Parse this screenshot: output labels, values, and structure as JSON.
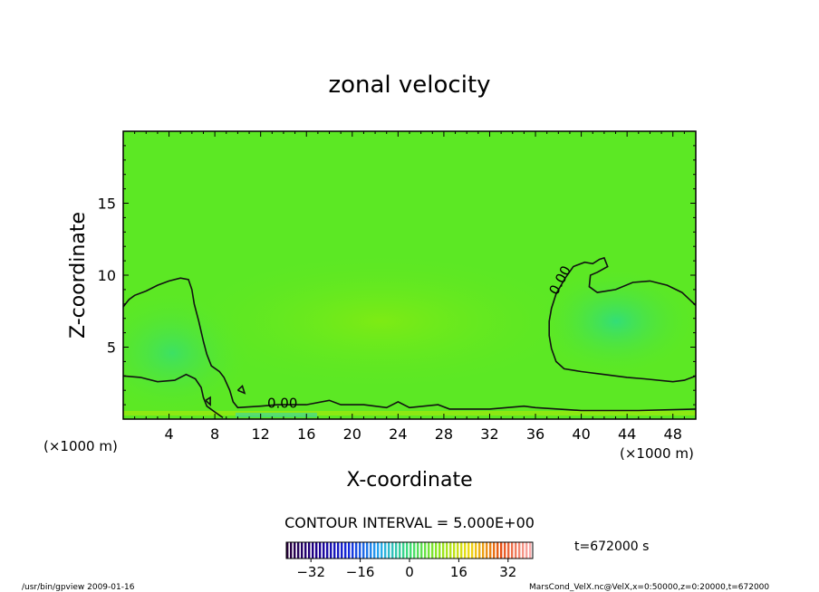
{
  "chart_data": {
    "type": "heatmap",
    "title": "zonal velocity",
    "xlabel": "X-coordinate",
    "ylabel": "Z-coordinate",
    "x_unit_note": "(×1000 m)",
    "z_unit_note": "(×1000 m)",
    "xlim": [
      0,
      50
    ],
    "ylim": [
      0,
      20
    ],
    "x_ticks": [
      4,
      8,
      12,
      16,
      20,
      24,
      28,
      32,
      36,
      40,
      44,
      48
    ],
    "y_ticks": [
      5,
      10,
      15
    ],
    "contour_interval_text": "CONTOUR INTERVAL = 5.000E+00",
    "contour_labels": [
      {
        "text": "0.00",
        "x": 13.9,
        "z": 0.8
      },
      {
        "text": "0.00",
        "x": 38.5,
        "z": 9.5
      }
    ],
    "zero_contours": [
      [
        [
          0,
          7.8
        ],
        [
          0.5,
          8.3
        ],
        [
          1,
          8.6
        ],
        [
          2,
          8.9
        ],
        [
          3,
          9.3
        ],
        [
          4,
          9.6
        ],
        [
          5,
          9.8
        ],
        [
          5.7,
          9.7
        ],
        [
          6,
          9.0
        ],
        [
          6.2,
          8.0
        ],
        [
          6.6,
          6.8
        ],
        [
          7.0,
          5.4
        ],
        [
          7.3,
          4.5
        ],
        [
          7.7,
          3.7
        ],
        [
          8.4,
          3.3
        ],
        [
          8.8,
          2.9
        ],
        [
          9.3,
          2.0
        ],
        [
          9.6,
          1.2
        ],
        [
          10.0,
          0.8
        ],
        [
          12.0,
          0.9
        ],
        [
          13.5,
          1.0
        ],
        [
          16.0,
          1.0
        ],
        [
          18.0,
          1.3
        ],
        [
          19.0,
          1.0
        ],
        [
          21.0,
          1.0
        ],
        [
          23.0,
          0.8
        ],
        [
          24.0,
          1.2
        ],
        [
          25.0,
          0.8
        ],
        [
          27.5,
          1.0
        ],
        [
          28.5,
          0.7
        ],
        [
          32.0,
          0.7
        ],
        [
          35.0,
          0.9
        ],
        [
          36.0,
          0.8
        ],
        [
          40.0,
          0.6
        ],
        [
          45.0,
          0.6
        ],
        [
          50.0,
          0.7
        ]
      ],
      [
        [
          0,
          3.0
        ],
        [
          1.5,
          2.9
        ],
        [
          3.0,
          2.6
        ],
        [
          4.5,
          2.7
        ],
        [
          5.5,
          3.1
        ],
        [
          6.3,
          2.8
        ],
        [
          6.8,
          2.2
        ],
        [
          7.0,
          1.5
        ],
        [
          7.3,
          0.9
        ],
        [
          8.0,
          0.5
        ],
        [
          8.7,
          0.1
        ]
      ],
      [
        [
          50.0,
          3.0
        ],
        [
          49.0,
          2.7
        ],
        [
          48.0,
          2.6
        ],
        [
          45.5,
          2.8
        ],
        [
          44.0,
          2.9
        ],
        [
          43.0,
          3.0
        ],
        [
          42.0,
          3.1
        ],
        [
          40.0,
          3.3
        ],
        [
          38.5,
          3.5
        ],
        [
          37.8,
          4.0
        ],
        [
          37.4,
          4.9
        ],
        [
          37.2,
          5.8
        ],
        [
          37.2,
          6.8
        ],
        [
          37.4,
          7.7
        ],
        [
          37.8,
          8.7
        ],
        [
          38.6,
          9.8
        ],
        [
          39.3,
          10.6
        ],
        [
          40.3,
          10.9
        ],
        [
          41.0,
          10.8
        ],
        [
          41.6,
          11.1
        ],
        [
          42.0,
          11.2
        ],
        [
          42.3,
          10.6
        ],
        [
          41.4,
          10.2
        ],
        [
          40.8,
          10.0
        ],
        [
          40.7,
          9.2
        ],
        [
          41.4,
          8.8
        ],
        [
          43.0,
          9.0
        ],
        [
          44.5,
          9.5
        ],
        [
          46.0,
          9.6
        ],
        [
          47.5,
          9.3
        ],
        [
          48.8,
          8.8
        ],
        [
          50.0,
          7.9
        ]
      ],
      [
        [
          7.2,
          1.3
        ],
        [
          7.6,
          1.0
        ],
        [
          7.6,
          1.5
        ],
        [
          7.2,
          1.3
        ]
      ],
      [
        [
          10.0,
          2.0
        ],
        [
          10.6,
          1.8
        ],
        [
          10.4,
          2.3
        ],
        [
          10.0,
          2.0
        ]
      ]
    ],
    "colorbar": {
      "ticks": [
        -32,
        -16,
        0,
        16,
        32
      ],
      "range": [
        -40,
        40
      ]
    },
    "time_label": "t=672000 s",
    "footer_left": "/usr/bin/gpview   2009-01-16",
    "footer_right": "MarsCond_VelX.nc@VelX,x=0:50000,z=0:20000,t=672000"
  },
  "colors": {
    "field_base": "#5ce824",
    "contour": "#111111",
    "frame": "#000000"
  }
}
